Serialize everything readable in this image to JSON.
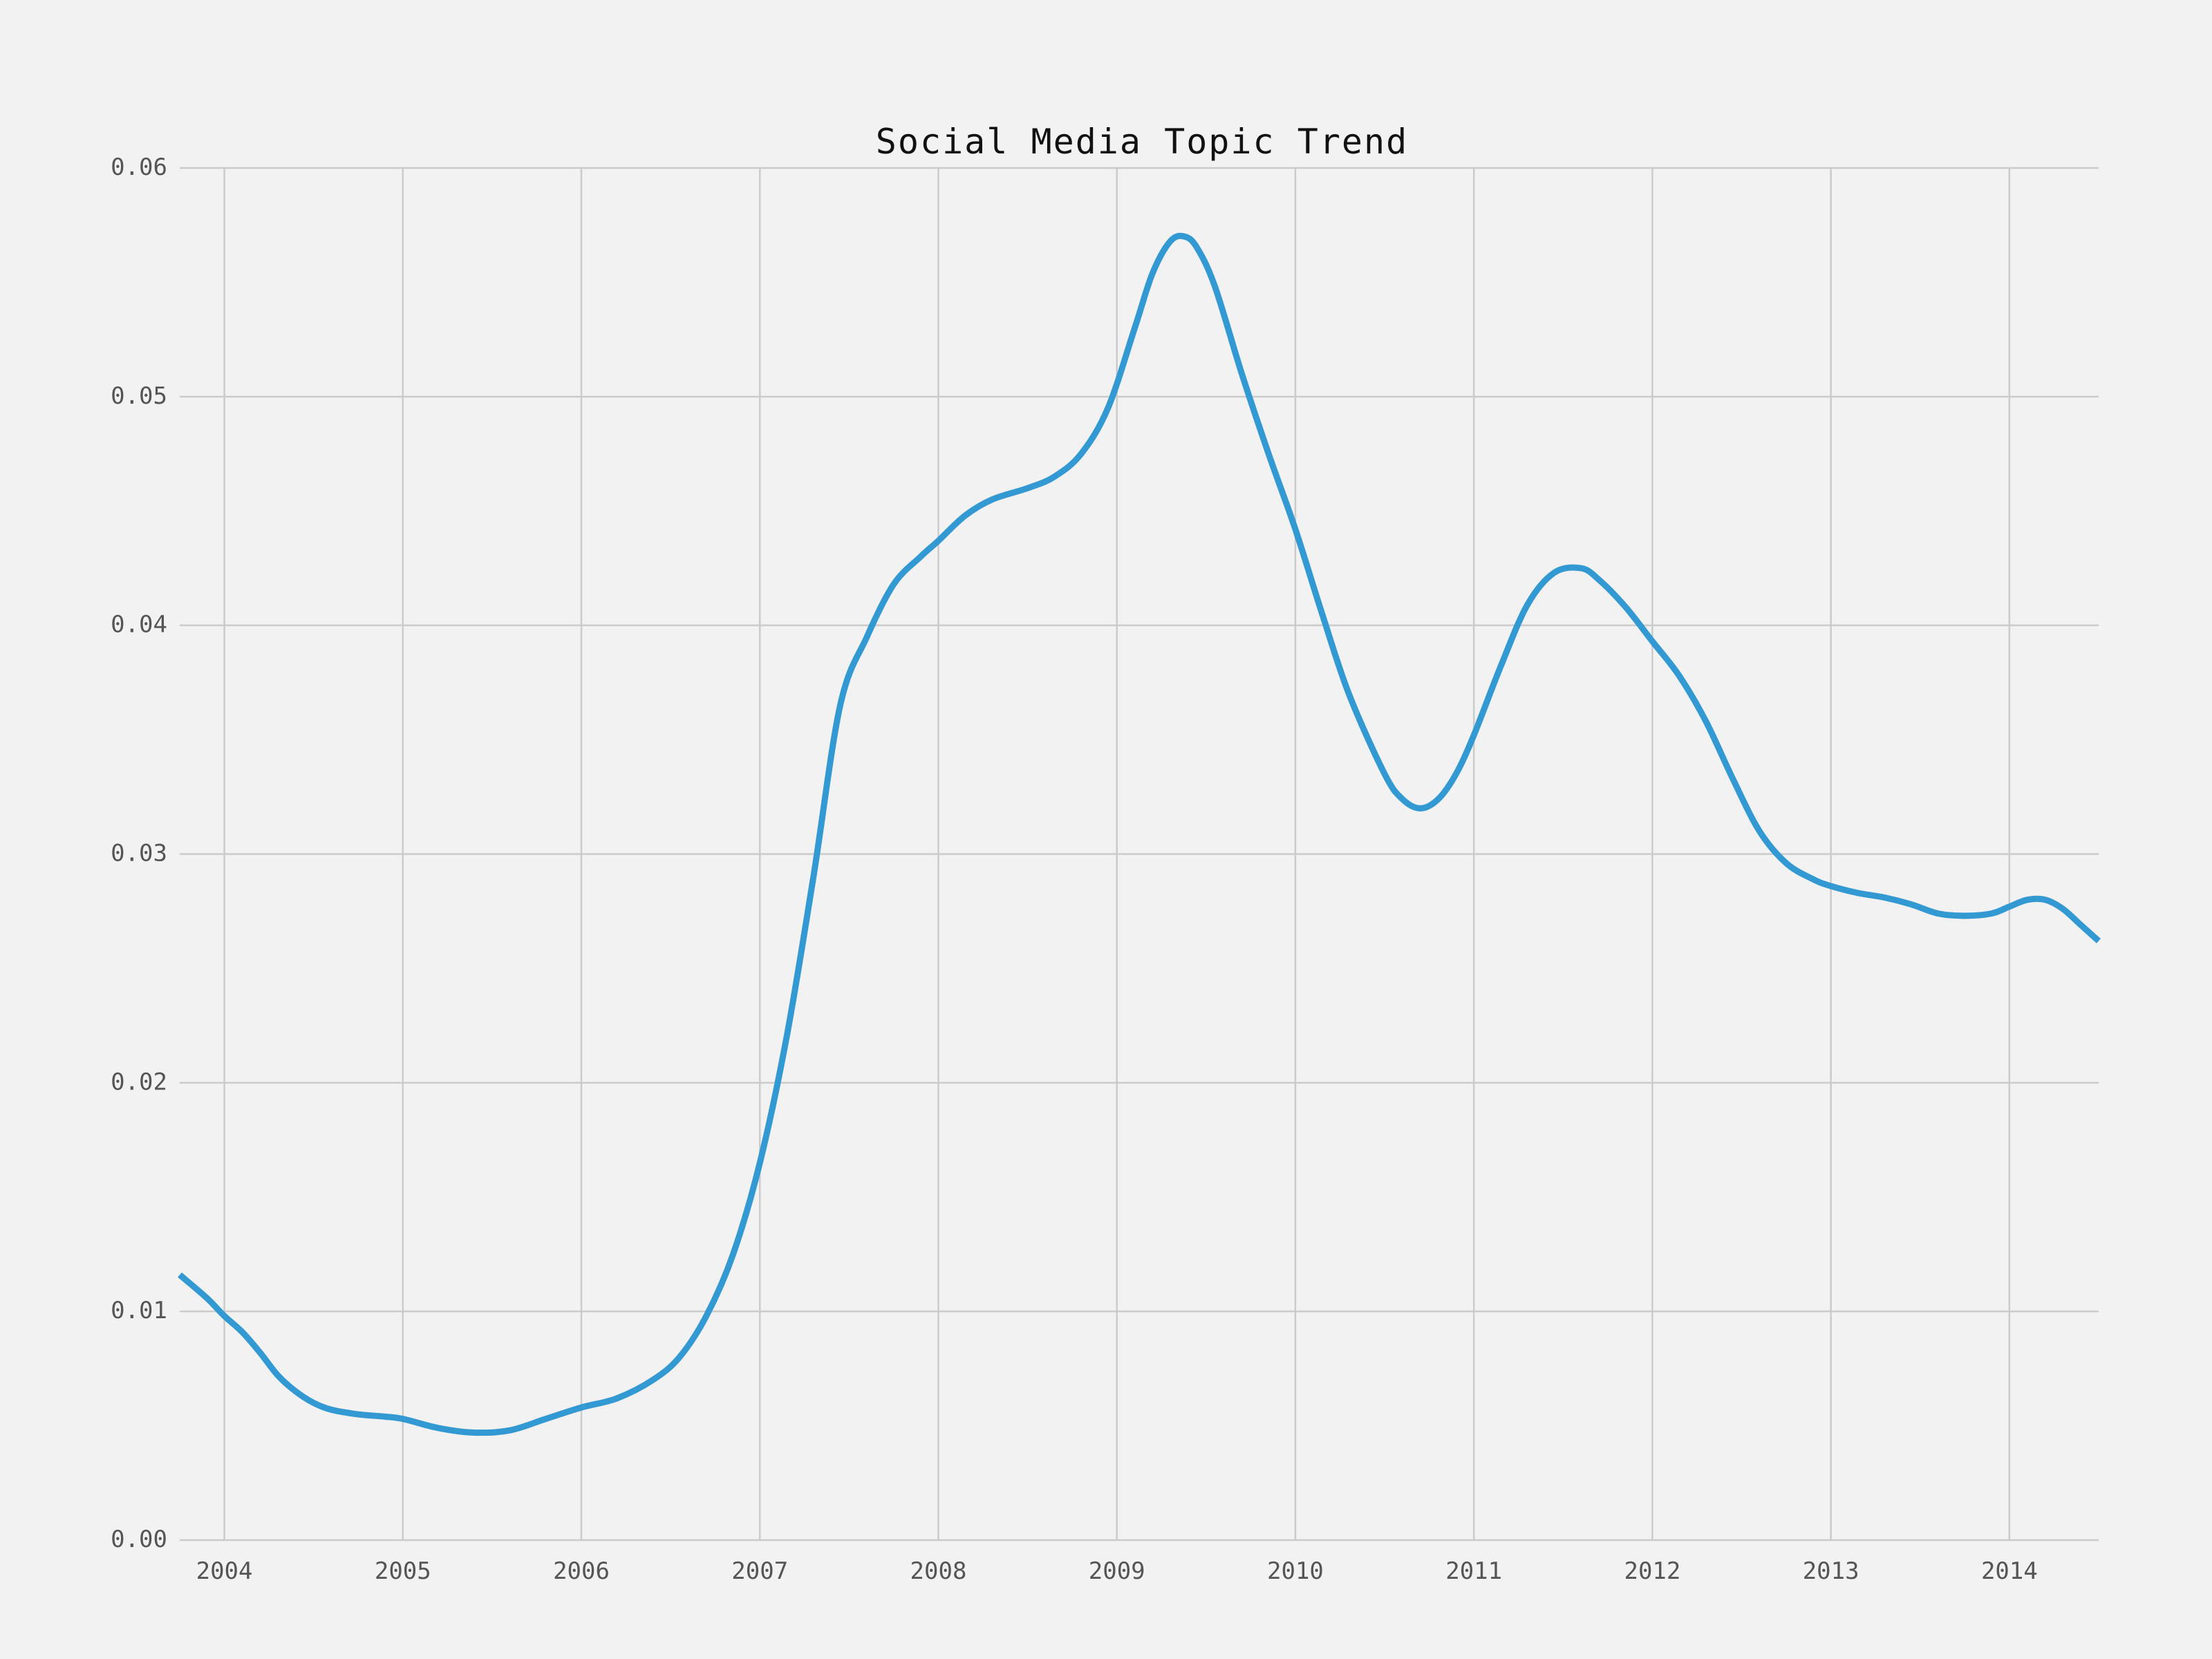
{
  "chart_data": {
    "type": "line",
    "title": "Social Media Topic Trend",
    "xlabel": "",
    "ylabel": "",
    "x_ticks": [
      "2004",
      "2005",
      "2006",
      "2007",
      "2008",
      "2009",
      "2010",
      "2011",
      "2012",
      "2013",
      "2014"
    ],
    "y_ticks": [
      "0.00",
      "0.01",
      "0.02",
      "0.03",
      "0.04",
      "0.05",
      "0.06"
    ],
    "xlim": [
      2003.75,
      2014.5
    ],
    "ylim": [
      0.0,
      0.06
    ],
    "grid": true,
    "line_color": "#3399d3",
    "background_color": "#f2f2f2",
    "grid_color": "#cbcbcb",
    "series": [
      {
        "x": [
          2003.75,
          2003.9,
          2004.0,
          2004.1,
          2004.2,
          2004.3,
          2004.4,
          2004.5,
          2004.6,
          2004.75,
          2004.9,
          2005.0,
          2005.2,
          2005.4,
          2005.6,
          2005.8,
          2006.0,
          2006.2,
          2006.4,
          2006.55,
          2006.7,
          2006.85,
          2007.0,
          2007.15,
          2007.3,
          2007.45,
          2007.6,
          2007.75,
          2007.9,
          2008.0,
          2008.15,
          2008.3,
          2008.5,
          2008.65,
          2008.8,
          2008.95,
          2009.1,
          2009.2,
          2009.3,
          2009.38,
          2009.45,
          2009.55,
          2009.7,
          2009.85,
          2010.0,
          2010.15,
          2010.3,
          2010.5,
          2010.6,
          2010.7,
          2010.8,
          2010.9,
          2011.0,
          2011.15,
          2011.3,
          2011.45,
          2011.6,
          2011.7,
          2011.85,
          2012.0,
          2012.15,
          2012.3,
          2012.45,
          2012.6,
          2012.75,
          2012.9,
          2013.0,
          2013.15,
          2013.3,
          2013.45,
          2013.6,
          2013.75,
          2013.9,
          2014.0,
          2014.1,
          2014.2,
          2014.3,
          2014.4,
          2014.5
        ],
        "y": [
          0.0116,
          0.0106,
          0.0098,
          0.0091,
          0.0082,
          0.0072,
          0.0065,
          0.006,
          0.0057,
          0.0055,
          0.0054,
          0.0053,
          0.0049,
          0.0047,
          0.0048,
          0.0053,
          0.0058,
          0.0062,
          0.007,
          0.008,
          0.0098,
          0.0125,
          0.0165,
          0.022,
          0.029,
          0.0365,
          0.0395,
          0.0418,
          0.043,
          0.0437,
          0.0448,
          0.0455,
          0.046,
          0.0465,
          0.0475,
          0.0495,
          0.053,
          0.0554,
          0.0568,
          0.057,
          0.0565,
          0.0548,
          0.051,
          0.0475,
          0.0442,
          0.0405,
          0.037,
          0.0335,
          0.0324,
          0.032,
          0.0324,
          0.0335,
          0.0352,
          0.0382,
          0.0409,
          0.0423,
          0.0425,
          0.042,
          0.0408,
          0.0393,
          0.0378,
          0.0358,
          0.0333,
          0.031,
          0.0296,
          0.0289,
          0.0286,
          0.0283,
          0.0281,
          0.0278,
          0.0274,
          0.0273,
          0.0274,
          0.0277,
          0.028,
          0.028,
          0.0276,
          0.0269,
          0.0262
        ]
      }
    ]
  }
}
